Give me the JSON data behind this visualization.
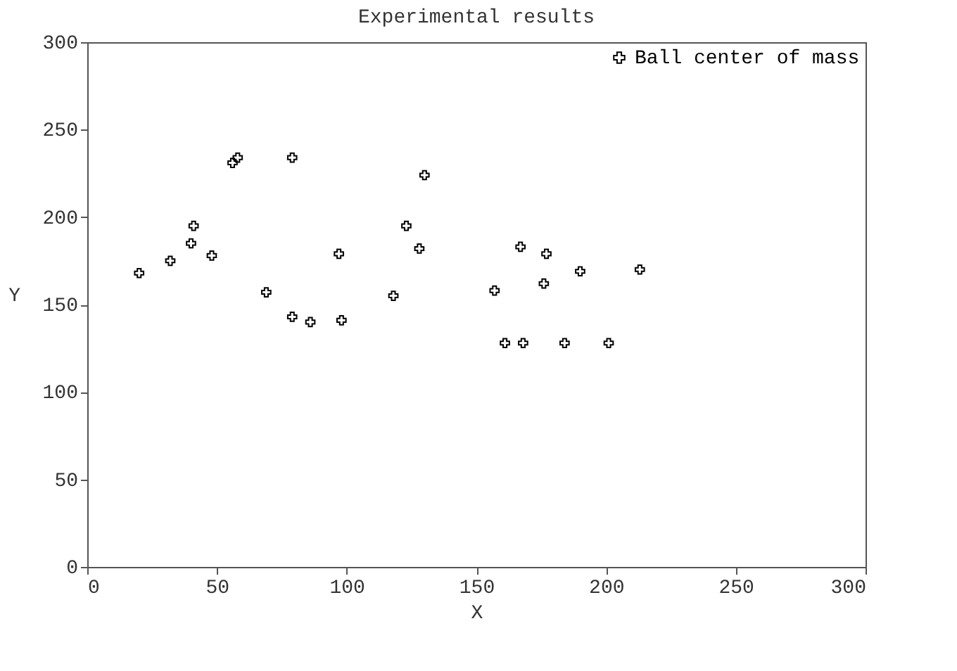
{
  "chart_data": {
    "type": "scatter",
    "title": "Experimental results",
    "xlabel": "X",
    "ylabel": "Y",
    "xlim": [
      0,
      300
    ],
    "xticks": [
      0,
      50,
      100,
      150,
      200,
      250,
      300
    ],
    "ylim": [
      0,
      300
    ],
    "yticks": [
      0,
      50,
      100,
      150,
      200,
      250,
      300
    ],
    "grid": false,
    "legend": "top right",
    "marker": "cross",
    "series": [
      {
        "name": "Ball center of mass",
        "color": "#000000",
        "x": [
          20,
          32,
          40,
          41,
          48,
          56,
          58,
          69,
          79,
          79,
          86,
          97,
          98,
          118,
          123,
          128,
          130,
          157,
          161,
          168,
          167,
          176,
          177,
          184,
          190,
          201,
          213
        ],
        "values": [
          168,
          175,
          185,
          195,
          178,
          231,
          234,
          157,
          234,
          143,
          140,
          179,
          141,
          155,
          195,
          182,
          224,
          158,
          128,
          128,
          183,
          162,
          179,
          128,
          169,
          128,
          170
        ]
      }
    ]
  }
}
